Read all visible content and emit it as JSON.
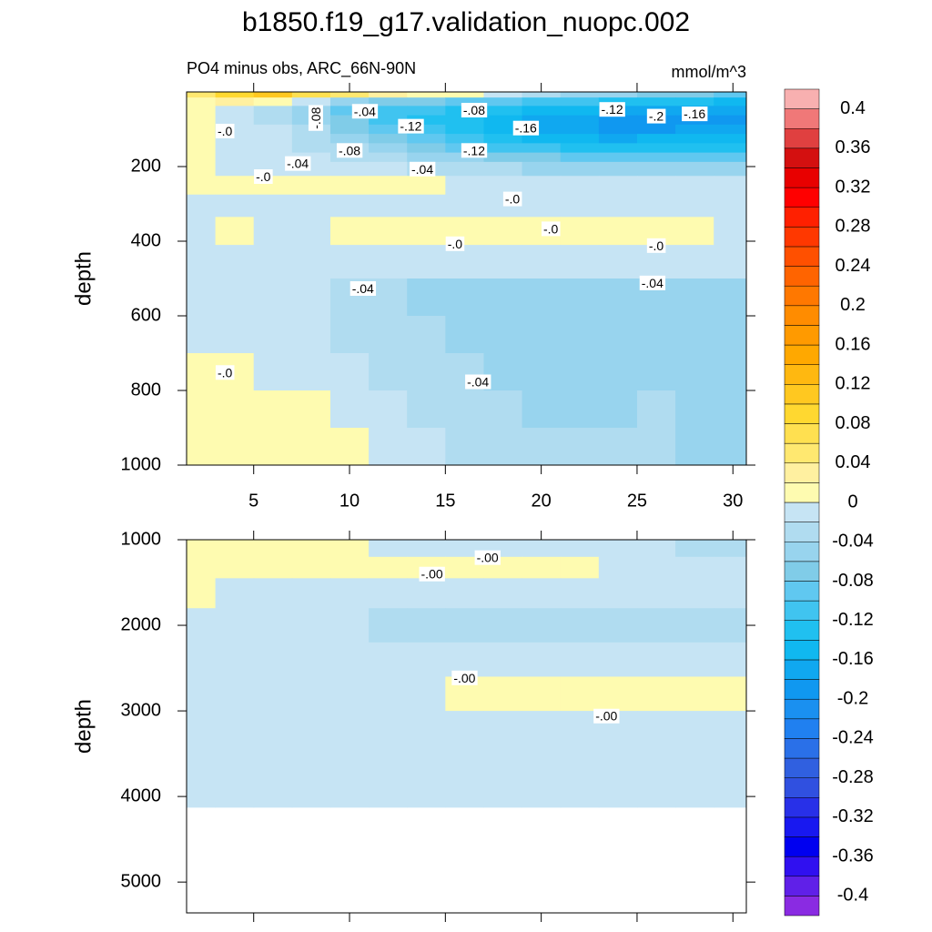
{
  "chart_data": {
    "type": "contour",
    "title": "b1850.f19_g17.validation_nuopc.002",
    "subtitle": "PO4 minus obs, ARC_66N-90N",
    "units": "mmol/m^3",
    "colorbar": {
      "levels": [
        -0.4,
        -0.38,
        -0.36,
        -0.34,
        -0.32,
        -0.3,
        -0.28,
        -0.26,
        -0.24,
        -0.22,
        -0.2,
        -0.18,
        -0.16,
        -0.14,
        -0.12,
        -0.1,
        -0.08,
        -0.06,
        -0.04,
        -0.02,
        0,
        0.02,
        0.04,
        0.06,
        0.08,
        0.1,
        0.12,
        0.14,
        0.16,
        0.18,
        0.2,
        0.22,
        0.24,
        0.26,
        0.28,
        0.3,
        0.32,
        0.34,
        0.36,
        0.38,
        0.4
      ],
      "colors": [
        "#8a2be2",
        "#6020e8",
        "#3010f0",
        "#0000f0",
        "#1818f0",
        "#2830e8",
        "#3050e0",
        "#3060e0",
        "#2a70e8",
        "#2080f0",
        "#1a90f0",
        "#1098f0",
        "#10a8f0",
        "#10b8f0",
        "#20c0f0",
        "#40c4f0",
        "#60c8f0",
        "#80cce8",
        "#98d4ee",
        "#b0dcf0",
        "#c6e4f4",
        "#fefbb0",
        "#fff0a0",
        "#ffe870",
        "#ffe050",
        "#ffd830",
        "#ffc820",
        "#ffb810",
        "#ffa800",
        "#ff9a00",
        "#ff8c00",
        "#ff7800",
        "#ff6400",
        "#ff5000",
        "#ff3800",
        "#ff2000",
        "#ff0000",
        "#e80000",
        "#d41010",
        "#e04040",
        "#f07878",
        "#f8b0b0"
      ],
      "ticks": [
        0.4,
        0.36,
        0.32,
        0.28,
        0.24,
        0.2,
        0.16,
        0.12,
        0.08,
        0.04,
        0,
        -0.04,
        -0.08,
        -0.12,
        -0.16,
        -0.2,
        -0.24,
        -0.28,
        -0.32,
        -0.36,
        -0.4
      ]
    },
    "panels": [
      {
        "ylabel": "depth",
        "xlim": [
          1.5,
          30.7
        ],
        "ylim": [
          0,
          1000
        ],
        "reversed": true,
        "xticks": [
          5,
          10,
          15,
          20,
          25,
          30
        ],
        "yticks": [
          200,
          400,
          600,
          800,
          1000
        ],
        "x": [
          2,
          4,
          6,
          8,
          10,
          12,
          14,
          16,
          18,
          20,
          22,
          24,
          26,
          28,
          30
        ],
        "y": [
          5,
          25,
          50,
          75,
          100,
          125,
          150,
          175,
          200,
          250,
          300,
          370,
          450,
          550,
          650,
          750,
          850,
          950
        ],
        "z": [
          [
            0.04,
            0.08,
            0.1,
            0.07,
            0.04,
            0.02,
            0.01,
            0.005,
            -0.01,
            -0.03,
            -0.05,
            -0.06,
            -0.07,
            -0.08,
            -0.09
          ],
          [
            0.01,
            0.02,
            0.01,
            -0.02,
            -0.05,
            -0.07,
            -0.08,
            -0.09,
            -0.1,
            -0.11,
            -0.12,
            -0.13,
            -0.14,
            -0.14,
            -0.15
          ],
          [
            0.01,
            -0.01,
            -0.03,
            -0.06,
            -0.09,
            -0.11,
            -0.12,
            -0.13,
            -0.14,
            -0.15,
            -0.16,
            -0.17,
            -0.17,
            -0.17,
            -0.17
          ],
          [
            0.01,
            -0.01,
            -0.03,
            -0.05,
            -0.08,
            -0.11,
            -0.13,
            -0.14,
            -0.15,
            -0.17,
            -0.18,
            -0.19,
            -0.19,
            -0.19,
            -0.19
          ],
          [
            0.01,
            -0.01,
            -0.02,
            -0.04,
            -0.07,
            -0.1,
            -0.12,
            -0.13,
            -0.15,
            -0.17,
            -0.18,
            -0.19,
            -0.19,
            -0.18,
            -0.18
          ],
          [
            0.01,
            -0.01,
            -0.02,
            -0.03,
            -0.05,
            -0.08,
            -0.1,
            -0.12,
            -0.13,
            -0.15,
            -0.16,
            -0.17,
            -0.16,
            -0.16,
            -0.16
          ],
          [
            0.01,
            -0.01,
            -0.01,
            -0.03,
            -0.04,
            -0.06,
            -0.08,
            -0.1,
            -0.11,
            -0.12,
            -0.13,
            -0.13,
            -0.13,
            -0.13,
            -0.13
          ],
          [
            0.01,
            -0.01,
            -0.01,
            -0.02,
            -0.03,
            -0.04,
            -0.05,
            -0.06,
            -0.07,
            -0.08,
            -0.09,
            -0.09,
            -0.09,
            -0.09,
            -0.09
          ],
          [
            0.01,
            -0.01,
            -0.01,
            -0.01,
            -0.02,
            -0.02,
            -0.03,
            -0.03,
            -0.04,
            -0.05,
            -0.05,
            -0.05,
            -0.05,
            -0.05,
            -0.05
          ],
          [
            0.01,
            0.01,
            0.01,
            0.005,
            0.005,
            0.005,
            0.005,
            -0.01,
            -0.01,
            -0.02,
            -0.02,
            -0.02,
            -0.02,
            -0.02,
            -0.02
          ],
          [
            -0.01,
            -0.01,
            -0.01,
            -0.01,
            -0.01,
            -0.01,
            -0.01,
            -0.01,
            -0.01,
            -0.01,
            -0.01,
            -0.01,
            -0.01,
            -0.01,
            -0.01
          ],
          [
            -0.01,
            0.005,
            -0.01,
            -0.01,
            0.005,
            0.005,
            0.005,
            0.005,
            0.005,
            0.005,
            0.005,
            0.005,
            0.005,
            0.005,
            -0.01
          ],
          [
            -0.01,
            -0.01,
            -0.01,
            -0.01,
            -0.01,
            -0.01,
            -0.01,
            -0.01,
            -0.01,
            -0.01,
            -0.01,
            -0.01,
            -0.01,
            -0.01,
            -0.01
          ],
          [
            -0.01,
            -0.01,
            -0.01,
            -0.015,
            -0.03,
            -0.03,
            -0.045,
            -0.045,
            -0.045,
            -0.045,
            -0.045,
            -0.045,
            -0.045,
            -0.045,
            -0.045
          ],
          [
            -0.01,
            -0.01,
            -0.01,
            -0.01,
            -0.03,
            -0.03,
            -0.03,
            -0.045,
            -0.045,
            -0.045,
            -0.045,
            -0.045,
            -0.045,
            -0.045,
            -0.045
          ],
          [
            0.01,
            0.01,
            -0.01,
            -0.01,
            -0.01,
            -0.03,
            -0.03,
            -0.03,
            -0.045,
            -0.045,
            -0.045,
            -0.045,
            -0.045,
            -0.045,
            -0.045
          ],
          [
            0.01,
            0.01,
            0.01,
            0.01,
            -0.01,
            -0.01,
            -0.03,
            -0.03,
            -0.03,
            -0.045,
            -0.045,
            -0.045,
            -0.03,
            -0.045,
            -0.045
          ],
          [
            0.01,
            0.01,
            0.01,
            0.01,
            0.01,
            -0.01,
            -0.01,
            -0.03,
            -0.03,
            -0.03,
            -0.03,
            -0.03,
            -0.03,
            -0.045,
            -0.045
          ]
        ],
        "annotations": [
          {
            "text": "-.08",
            "x": 8.3,
            "y": 70,
            "rotate": true
          },
          {
            "text": "-.04",
            "x": 10.8,
            "y": 55
          },
          {
            "text": "-.08",
            "x": 16.5,
            "y": 52
          },
          {
            "text": "-.12",
            "x": 23.7,
            "y": 50
          },
          {
            "text": "-.2",
            "x": 26,
            "y": 68
          },
          {
            "text": "-.16",
            "x": 28,
            "y": 62
          },
          {
            "text": "-.0",
            "x": 3.5,
            "y": 108
          },
          {
            "text": "-.12",
            "x": 13.2,
            "y": 95
          },
          {
            "text": "-.16",
            "x": 19.2,
            "y": 100
          },
          {
            "text": "-.08",
            "x": 10,
            "y": 160
          },
          {
            "text": "-.12",
            "x": 16.5,
            "y": 160
          },
          {
            "text": "-.04",
            "x": 7.3,
            "y": 195
          },
          {
            "text": "-.04",
            "x": 13.8,
            "y": 210
          },
          {
            "text": "-.0",
            "x": 5.5,
            "y": 230
          },
          {
            "text": "-.0",
            "x": 18.5,
            "y": 290
          },
          {
            "text": "-.0",
            "x": 20.5,
            "y": 370
          },
          {
            "text": "-.0",
            "x": 15.5,
            "y": 410
          },
          {
            "text": "-.0",
            "x": 26,
            "y": 415
          },
          {
            "text": "-.04",
            "x": 10.7,
            "y": 530
          },
          {
            "text": "-.04",
            "x": 25.8,
            "y": 515
          },
          {
            "text": "-.0",
            "x": 3.5,
            "y": 755
          },
          {
            "text": "-.04",
            "x": 16.7,
            "y": 780
          }
        ]
      },
      {
        "ylabel": "depth",
        "xlim": [
          1.5,
          30.7
        ],
        "ylim": [
          1000,
          5360
        ],
        "reversed": true,
        "yticks": [
          1000,
          2000,
          3000,
          4000,
          5000
        ],
        "x": [
          2,
          4,
          6,
          8,
          10,
          12,
          14,
          16,
          18,
          20,
          22,
          24,
          26,
          28,
          30
        ],
        "y": [
          1100,
          1300,
          1600,
          2000,
          2400,
          2800,
          3200,
          3600,
          3950
        ],
        "z": [
          [
            0.01,
            0.01,
            0.01,
            0.01,
            0.01,
            -0.01,
            -0.01,
            -0.01,
            -0.01,
            -0.01,
            -0.01,
            -0.01,
            -0.01,
            -0.03,
            -0.03
          ],
          [
            0.01,
            0.01,
            0.01,
            0.01,
            0.01,
            0.01,
            0.01,
            0.01,
            0.01,
            0.01,
            0.01,
            -0.01,
            -0.01,
            -0.01,
            -0.01
          ],
          [
            0.01,
            -0.01,
            -0.01,
            -0.01,
            -0.01,
            -0.01,
            -0.01,
            -0.01,
            -0.01,
            -0.01,
            -0.01,
            -0.01,
            -0.01,
            -0.01,
            -0.01
          ],
          [
            -0.01,
            -0.01,
            -0.01,
            -0.01,
            -0.01,
            -0.03,
            -0.03,
            -0.03,
            -0.03,
            -0.03,
            -0.03,
            -0.03,
            -0.03,
            -0.03,
            -0.03
          ],
          [
            -0.01,
            -0.01,
            -0.01,
            -0.01,
            -0.01,
            -0.01,
            -0.01,
            -0.01,
            -0.01,
            -0.01,
            -0.01,
            -0.01,
            -0.01,
            -0.01,
            -0.01
          ],
          [
            -0.01,
            -0.01,
            -0.01,
            -0.01,
            -0.01,
            -0.01,
            -0.01,
            0.01,
            0.01,
            0.01,
            0.01,
            0.01,
            0.01,
            0.01,
            0.01
          ],
          [
            -0.01,
            -0.01,
            -0.01,
            -0.01,
            -0.01,
            -0.01,
            -0.01,
            -0.01,
            -0.01,
            -0.01,
            -0.01,
            -0.01,
            -0.01,
            -0.01,
            -0.01
          ],
          [
            -0.01,
            -0.01,
            -0.01,
            -0.01,
            -0.01,
            -0.01,
            -0.01,
            -0.01,
            -0.01,
            -0.01,
            -0.01,
            -0.01,
            -0.01,
            -0.01,
            -0.01
          ],
          [
            -0.01,
            -0.01,
            -0.01,
            -0.01,
            -0.01,
            -0.01,
            -0.01,
            -0.01,
            -0.01,
            -0.01,
            -0.01,
            -0.01,
            -0.01,
            -0.01,
            -0.01
          ]
        ],
        "annotations": [
          {
            "text": "-.00",
            "x": 17.2,
            "y": 1223
          },
          {
            "text": "-.00",
            "x": 14.3,
            "y": 1415
          },
          {
            "text": "-.00",
            "x": 16,
            "y": 2628
          },
          {
            "text": "-.00",
            "x": 23.4,
            "y": 3074
          }
        ]
      }
    ]
  }
}
